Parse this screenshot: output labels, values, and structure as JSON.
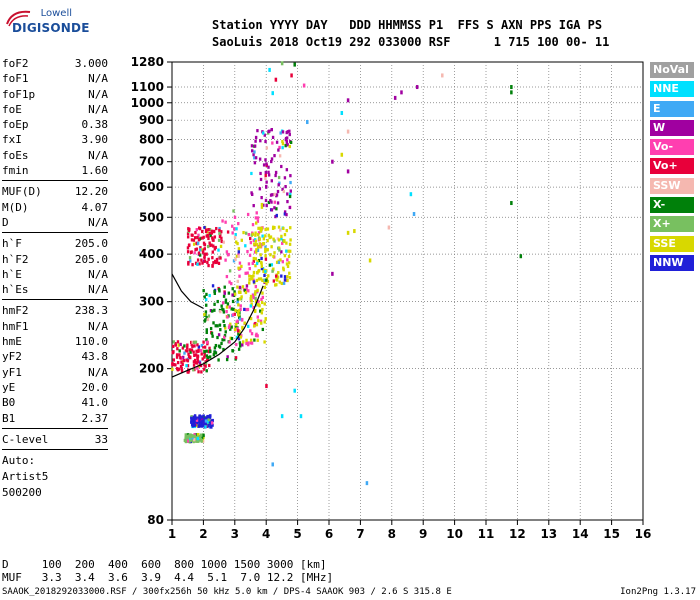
{
  "logo": {
    "line1": "Lowell",
    "line2": "DIGISONDE"
  },
  "header": {
    "line1": "Station YYYY DAY   DDD HHMMSS P1  FFS S AXN PPS IGA PS",
    "line2": "SaoLuis 2018 Oct19 292 033000 RSF      1 715 100 00- 11"
  },
  "params": {
    "group1": [
      {
        "label": "foF2",
        "value": "3.000"
      },
      {
        "label": "foF1",
        "value": "N/A"
      },
      {
        "label": "foF1p",
        "value": "N/A"
      },
      {
        "label": "foE",
        "value": "N/A"
      },
      {
        "label": "foEp",
        "value": "0.38"
      },
      {
        "label": "fxI",
        "value": "3.90"
      },
      {
        "label": "foEs",
        "value": "N/A"
      },
      {
        "label": "fmin",
        "value": "1.60"
      }
    ],
    "group2": [
      {
        "label": "MUF(D)",
        "value": "12.20"
      },
      {
        "label": "M(D)",
        "value": "4.07"
      },
      {
        "label": "D",
        "value": "N/A"
      }
    ],
    "group3": [
      {
        "label": "h`F",
        "value": "205.0"
      },
      {
        "label": "h`F2",
        "value": "205.0"
      },
      {
        "label": "h`E",
        "value": "N/A"
      },
      {
        "label": "h`Es",
        "value": "N/A"
      }
    ],
    "group4": [
      {
        "label": "hmF2",
        "value": "238.3"
      },
      {
        "label": "hmF1",
        "value": "N/A"
      },
      {
        "label": "hmE",
        "value": "110.0"
      },
      {
        "label": "yF2",
        "value": "43.8"
      },
      {
        "label": "yF1",
        "value": "N/A"
      },
      {
        "label": "yE",
        "value": "20.0"
      },
      {
        "label": "B0",
        "value": "41.0"
      },
      {
        "label": "B1",
        "value": "2.37"
      }
    ],
    "group5": [
      {
        "label": "C-level",
        "value": "33"
      }
    ],
    "autoscale": [
      "Auto:",
      "Artist5",
      "500200"
    ]
  },
  "legend": [
    {
      "label": "NoVal",
      "color": "#a0a0a0"
    },
    {
      "label": "NNE",
      "color": "#00e0ff"
    },
    {
      "label": "E",
      "color": "#3fa9f5"
    },
    {
      "label": "W",
      "color": "#a000a0"
    },
    {
      "label": "Vo-",
      "color": "#ff3fb0"
    },
    {
      "label": "Vo+",
      "color": "#e8003a"
    },
    {
      "label": "SSW",
      "color": "#f5b8b0"
    },
    {
      "label": "X-",
      "color": "#00800a"
    },
    {
      "label": "X+",
      "color": "#78c060"
    },
    {
      "label": "SSE",
      "color": "#d8d800"
    },
    {
      "label": "NNW",
      "color": "#2020d8"
    }
  ],
  "table": {
    "line1": "D     100  200  400  600  800 1000 1500 3000 [km]",
    "line2": "MUF   3.3  3.4  3.6  3.9  4.4  5.1  7.0 12.2 [MHz]"
  },
  "footer": {
    "left": "SAAOK_2018292033000.RSF / 300fx256h 50 kHz 5.0 km / DPS-4 SAAOK 903 / 2.6 S 315.8 E",
    "right": "Ion2Png 1.3.17"
  },
  "chart_data": {
    "type": "scatter",
    "title": "",
    "xlabel": "",
    "ylabel": "",
    "xlim": [
      1,
      16
    ],
    "ylim_log": [
      80,
      1280
    ],
    "x_ticks": [
      1,
      2,
      3,
      4,
      5,
      6,
      7,
      8,
      9,
      10,
      11,
      12,
      13,
      14,
      15,
      16
    ],
    "y_ticks": [
      80,
      200,
      300,
      400,
      500,
      600,
      700,
      800,
      900,
      1000,
      1100,
      1280
    ],
    "grid": true,
    "legend_position": "right",
    "trace_series": [
      {
        "name": "profile",
        "points": [
          [
            1.0,
            190
          ],
          [
            1.5,
            198
          ],
          [
            2.0,
            206
          ],
          [
            2.5,
            218
          ],
          [
            3.0,
            235
          ],
          [
            3.3,
            255
          ],
          [
            3.6,
            285
          ],
          [
            3.9,
            330
          ]
        ]
      },
      {
        "name": "profile-lower",
        "points": [
          [
            1.0,
            355
          ],
          [
            1.3,
            320
          ],
          [
            1.6,
            300
          ],
          [
            2.0,
            288
          ]
        ]
      }
    ],
    "echo_clusters": [
      {
        "freq_range": [
          1.0,
          2.2
        ],
        "height_range": [
          195,
          235
        ],
        "color": "#e8003a"
      },
      {
        "freq_range": [
          1.5,
          2.6
        ],
        "height_range": [
          370,
          470
        ],
        "color": "#e8003a"
      },
      {
        "freq_range": [
          2.0,
          3.2
        ],
        "height_range": [
          210,
          330
        ],
        "color": "#00800a"
      },
      {
        "freq_range": [
          2.6,
          3.9
        ],
        "height_range": [
          230,
          520
        ],
        "color": "#ff3fb0"
      },
      {
        "freq_range": [
          3.0,
          4.0
        ],
        "height_range": [
          230,
          470
        ],
        "color": "#d8d800"
      },
      {
        "freq_range": [
          3.6,
          4.8
        ],
        "height_range": [
          330,
          470
        ],
        "color": "#d8d800"
      },
      {
        "freq_range": [
          3.5,
          4.8
        ],
        "height_range": [
          500,
          850
        ],
        "color": "#a000a0"
      },
      {
        "freq_range": [
          1.6,
          2.3
        ],
        "height_range": [
          140,
          150
        ],
        "color": "#2020d8"
      },
      {
        "freq_range": [
          1.4,
          2.0
        ],
        "height_range": [
          128,
          134
        ],
        "color": "#78c060"
      }
    ],
    "scatter_points": [
      [
        4.5,
        1270,
        "#78c060"
      ],
      [
        4.9,
        1260,
        "#00800a"
      ],
      [
        4.1,
        1220,
        "#00e0ff"
      ],
      [
        4.8,
        1180,
        "#e8003a"
      ],
      [
        9.6,
        1180,
        "#f5b8b0"
      ],
      [
        4.3,
        1150,
        "#e8003a"
      ],
      [
        5.2,
        1110,
        "#ff3fb0"
      ],
      [
        8.8,
        1100,
        "#a000a0"
      ],
      [
        11.8,
        1100,
        "#00800a"
      ],
      [
        11.8,
        1065,
        "#00800a"
      ],
      [
        8.3,
        1065,
        "#a000a0"
      ],
      [
        4.2,
        1060,
        "#00e0ff"
      ],
      [
        8.1,
        1030,
        "#a000a0"
      ],
      [
        6.6,
        1015,
        "#a000a0"
      ],
      [
        6.4,
        940,
        "#00e0ff"
      ],
      [
        5.3,
        890,
        "#3fa9f5"
      ],
      [
        6.6,
        840,
        "#f5b8b0"
      ],
      [
        6.4,
        730,
        "#d8d800"
      ],
      [
        6.1,
        700,
        "#a000a0"
      ],
      [
        6.6,
        660,
        "#a000a0"
      ],
      [
        8.6,
        575,
        "#00e0ff"
      ],
      [
        11.8,
        545,
        "#00800a"
      ],
      [
        8.7,
        510,
        "#3fa9f5"
      ],
      [
        6.6,
        455,
        "#d8d800"
      ],
      [
        6.8,
        460,
        "#d8d800"
      ],
      [
        7.9,
        470,
        "#f5b8b0"
      ],
      [
        12.1,
        395,
        "#00800a"
      ],
      [
        7.3,
        385,
        "#d8d800"
      ],
      [
        6.1,
        355,
        "#a000a0"
      ],
      [
        4.9,
        175,
        "#00e0ff"
      ],
      [
        5.1,
        150,
        "#00e0ff"
      ],
      [
        4.5,
        150,
        "#00e0ff"
      ],
      [
        4.2,
        112,
        "#3fa9f5"
      ],
      [
        7.2,
        100,
        "#3fa9f5"
      ],
      [
        4.0,
        180,
        "#e8003a"
      ]
    ]
  }
}
